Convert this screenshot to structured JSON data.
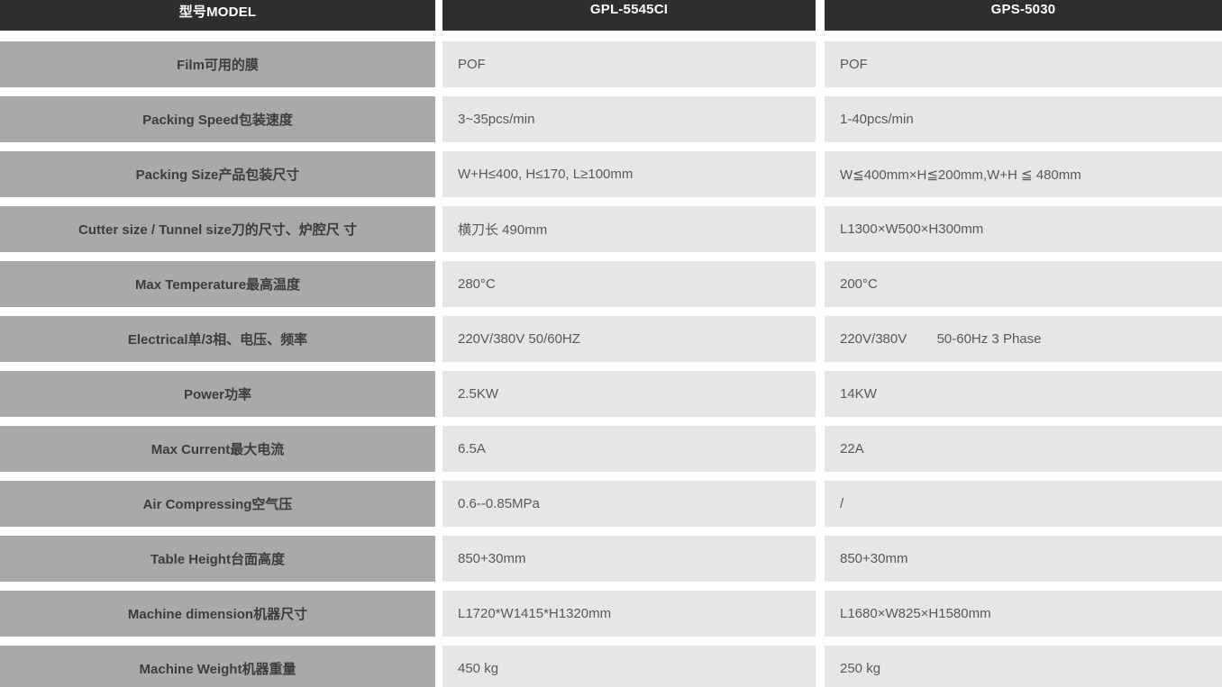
{
  "table": {
    "columns": [
      {
        "header": "型号MODEL"
      },
      {
        "header": "GPL-5545CI"
      },
      {
        "header": "GPS-5030"
      }
    ],
    "rows": [
      {
        "label": "Film可用的膜",
        "gpl": "POF",
        "gps": "POF"
      },
      {
        "label": "Packing Speed包装速度",
        "gpl": "3~35pcs/min",
        "gps": "1-40pcs/min"
      },
      {
        "label": "Packing Size产品包装尺寸",
        "gpl": "W+H≤400, H≤170, L≥100mm",
        "gps": "W≦400mm×H≦200mm,W+H ≦ 480mm"
      },
      {
        "label": "Cutter size / Tunnel size刀的尺寸、炉腔尺 寸",
        "gpl": "横刀长 490mm",
        "gps": "L1300×W500×H300mm"
      },
      {
        "label": "Max Temperature最高温度",
        "gpl": "280°C",
        "gps": "200°C"
      },
      {
        "label": "Electrical单/3相、电压、频率",
        "gpl": "220V/380V 50/60HZ",
        "gps": "220V/380V        50-60Hz 3 Phase"
      },
      {
        "label": "Power功率",
        "gpl": "2.5KW",
        "gps": "14KW"
      },
      {
        "label": "Max Current最大电流",
        "gpl": "6.5A",
        "gps": "22A"
      },
      {
        "label": "Air Compressing空气压",
        "gpl": "0.6--0.85MPa",
        "gps": "/"
      },
      {
        "label": "Table Height台面高度",
        "gpl": "850+30mm",
        "gps": "850+30mm"
      },
      {
        "label": "Machine dimension机器尺寸",
        "gpl": "L1720*W1415*H1320mm",
        "gps": "L1680×W825×H1580mm"
      },
      {
        "label": "Machine Weight机器重量",
        "gpl": "450 kg",
        "gps": "250 kg"
      }
    ],
    "colors": {
      "header_bg": "#2e2e2e",
      "header_text": "#ffffff",
      "label_bg": "#a9a9a9",
      "label_text": "#3d3d3d",
      "value_bg": "#e6e6e6",
      "value_text": "#595959",
      "gap": "#ffffff"
    }
  }
}
